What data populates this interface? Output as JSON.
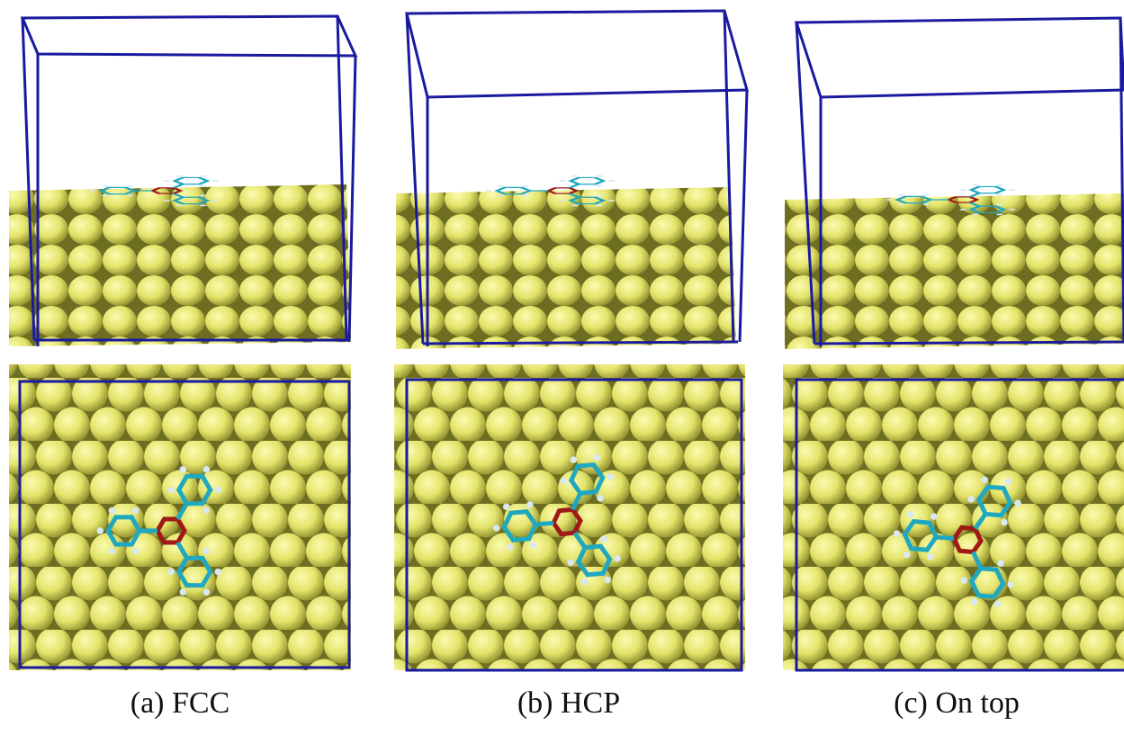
{
  "panels": [
    {
      "caption": "(a) FCC"
    },
    {
      "caption": "(b) HCP"
    },
    {
      "caption": "(c) On top"
    }
  ]
}
